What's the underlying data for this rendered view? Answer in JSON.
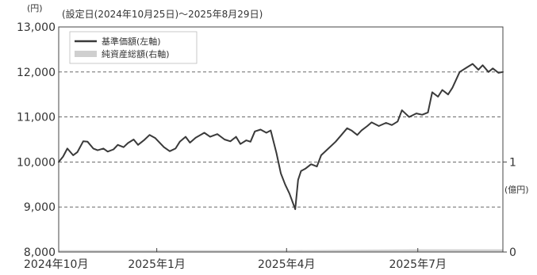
{
  "chart_data": {
    "type": "line",
    "subtitle": "(設定日(2024年10月25日)～2025年8月29日)",
    "y_left_unit": "(円)",
    "y_right_unit": "(億円)",
    "y_left_ticks": [
      "8,000",
      "9,000",
      "10,000",
      "11,000",
      "12,000",
      "13,000"
    ],
    "y_left_tick_values": [
      8000,
      9000,
      10000,
      11000,
      12000,
      13000
    ],
    "y_right_ticks": [
      "0",
      "1"
    ],
    "y_right_tick_values": [
      0,
      1
    ],
    "ylim_left": [
      8000,
      13000
    ],
    "ylim_right": [
      0,
      2.5
    ],
    "x_ticks": [
      "2024年10月",
      "2025年1月",
      "2025年4月",
      "2025年7月"
    ],
    "x_tick_dates": [
      "2024-10-25",
      "2025-01-01",
      "2025-04-01",
      "2025-07-01"
    ],
    "xlim": [
      "2024-10-25",
      "2025-08-29"
    ],
    "grid": "horizontal-dashed",
    "legend_position": "top-left",
    "series": [
      {
        "name": "基準価額(左軸)",
        "color": "#3a3a3a",
        "style": "line",
        "points": [
          [
            "2024-10-25",
            10000
          ],
          [
            "2024-10-28",
            10120
          ],
          [
            "2024-10-31",
            10300
          ],
          [
            "2024-11-04",
            10150
          ],
          [
            "2024-11-07",
            10220
          ],
          [
            "2024-11-11",
            10460
          ],
          [
            "2024-11-14",
            10450
          ],
          [
            "2024-11-18",
            10300
          ],
          [
            "2024-11-21",
            10260
          ],
          [
            "2024-11-25",
            10300
          ],
          [
            "2024-11-28",
            10230
          ],
          [
            "2024-12-02",
            10280
          ],
          [
            "2024-12-05",
            10380
          ],
          [
            "2024-12-09",
            10330
          ],
          [
            "2024-12-12",
            10420
          ],
          [
            "2024-12-16",
            10500
          ],
          [
            "2024-12-19",
            10380
          ],
          [
            "2024-12-23",
            10480
          ],
          [
            "2024-12-27",
            10600
          ],
          [
            "2024-12-31",
            10530
          ],
          [
            "2025-01-06",
            10330
          ],
          [
            "2025-01-10",
            10240
          ],
          [
            "2025-01-14",
            10300
          ],
          [
            "2025-01-17",
            10450
          ],
          [
            "2025-01-21",
            10560
          ],
          [
            "2025-01-24",
            10430
          ],
          [
            "2025-01-28",
            10540
          ],
          [
            "2025-02-03",
            10650
          ],
          [
            "2025-02-07",
            10560
          ],
          [
            "2025-02-12",
            10620
          ],
          [
            "2025-02-17",
            10500
          ],
          [
            "2025-02-21",
            10460
          ],
          [
            "2025-02-25",
            10560
          ],
          [
            "2025-02-28",
            10400
          ],
          [
            "2025-03-04",
            10480
          ],
          [
            "2025-03-07",
            10450
          ],
          [
            "2025-03-10",
            10680
          ],
          [
            "2025-03-14",
            10720
          ],
          [
            "2025-03-18",
            10650
          ],
          [
            "2025-03-21",
            10700
          ],
          [
            "2025-03-25",
            10200
          ],
          [
            "2025-03-28",
            9750
          ],
          [
            "2025-03-31",
            9500
          ],
          [
            "2025-04-03",
            9300
          ],
          [
            "2025-04-07",
            8950
          ],
          [
            "2025-04-09",
            9600
          ],
          [
            "2025-04-11",
            9800
          ],
          [
            "2025-04-14",
            9850
          ],
          [
            "2025-04-18",
            9950
          ],
          [
            "2025-04-22",
            9900
          ],
          [
            "2025-04-25",
            10150
          ],
          [
            "2025-04-30",
            10300
          ],
          [
            "2025-05-05",
            10450
          ],
          [
            "2025-05-09",
            10600
          ],
          [
            "2025-05-13",
            10750
          ],
          [
            "2025-05-16",
            10700
          ],
          [
            "2025-05-20",
            10600
          ],
          [
            "2025-05-23",
            10700
          ],
          [
            "2025-05-27",
            10800
          ],
          [
            "2025-05-30",
            10880
          ],
          [
            "2025-06-04",
            10800
          ],
          [
            "2025-06-09",
            10870
          ],
          [
            "2025-06-13",
            10820
          ],
          [
            "2025-06-17",
            10900
          ],
          [
            "2025-06-20",
            11150
          ],
          [
            "2025-06-25",
            11000
          ],
          [
            "2025-06-30",
            11080
          ],
          [
            "2025-07-04",
            11050
          ],
          [
            "2025-07-08",
            11100
          ],
          [
            "2025-07-11",
            11550
          ],
          [
            "2025-07-15",
            11450
          ],
          [
            "2025-07-18",
            11600
          ],
          [
            "2025-07-22",
            11500
          ],
          [
            "2025-07-25",
            11650
          ],
          [
            "2025-07-30",
            12000
          ],
          [
            "2025-08-04",
            12100
          ],
          [
            "2025-08-08",
            12180
          ],
          [
            "2025-08-12",
            12050
          ],
          [
            "2025-08-15",
            12150
          ],
          [
            "2025-08-19",
            12000
          ],
          [
            "2025-08-22",
            12080
          ],
          [
            "2025-08-26",
            11980
          ],
          [
            "2025-08-29",
            12000
          ]
        ]
      },
      {
        "name": "純資産総額(右軸)",
        "color": "#cfcfcf",
        "style": "area",
        "points": [
          [
            "2024-10-25",
            0.02
          ],
          [
            "2025-01-01",
            0.02
          ],
          [
            "2025-04-01",
            0.02
          ],
          [
            "2025-07-01",
            0.03
          ],
          [
            "2025-08-29",
            0.03
          ]
        ]
      }
    ]
  }
}
